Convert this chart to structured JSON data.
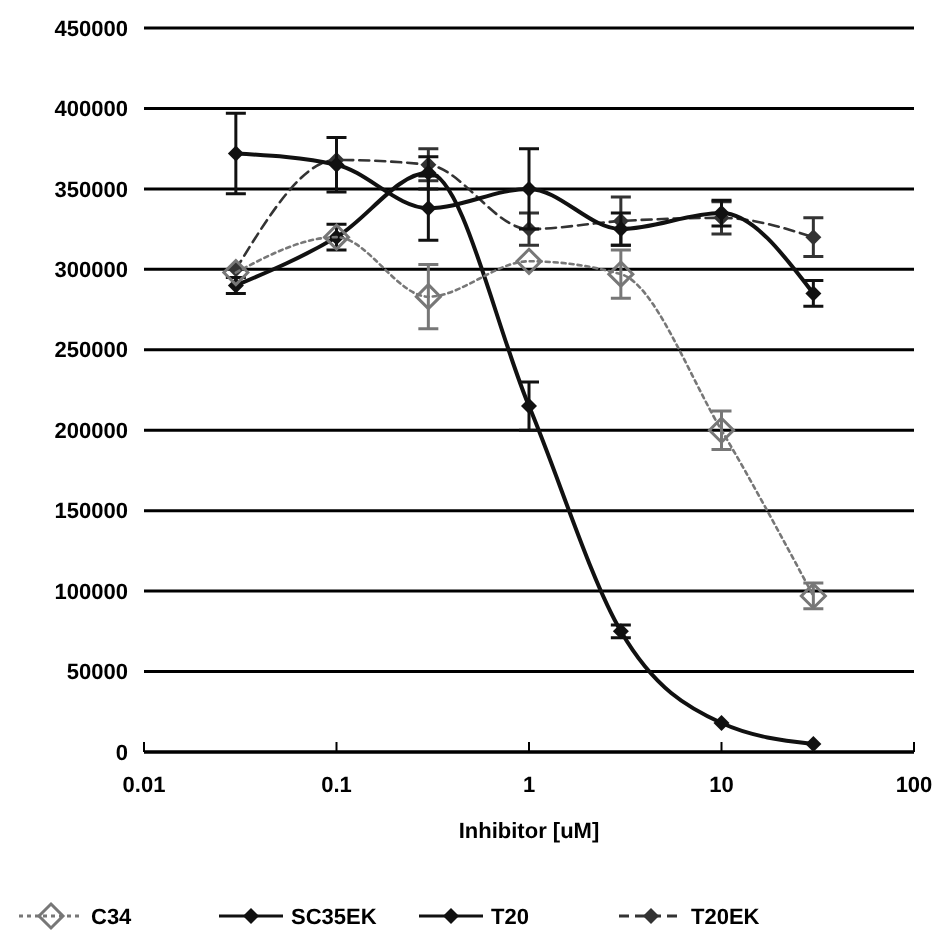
{
  "chart_data": {
    "type": "line",
    "xlabel": "Inhibitor [uM]",
    "log": "x",
    "grid": "y",
    "legend": "bottom",
    "marker": "diamond",
    "x": [
      0.03,
      0.1,
      0.3,
      1,
      3,
      10,
      30
    ],
    "xlim": [
      0.01,
      100
    ],
    "xticks": [
      0.01,
      0.1,
      1,
      10,
      100
    ],
    "ylim": [
      0,
      450000
    ],
    "yticks": [
      0,
      50000,
      100000,
      150000,
      200000,
      250000,
      300000,
      350000,
      400000,
      450000
    ],
    "series": [
      {
        "name": "C34",
        "color": "#777777",
        "line_style": "dotted",
        "values": [
          298000,
          320000,
          283000,
          305000,
          297000,
          200000,
          97000
        ],
        "errors": [
          null,
          null,
          20000,
          null,
          15000,
          12000,
          8000
        ]
      },
      {
        "name": "SC35EK",
        "color": "#111111",
        "line_style": "solid",
        "values": [
          372000,
          365000,
          338000,
          350000,
          325000,
          335000,
          285000
        ],
        "errors": [
          25000,
          17000,
          20000,
          25000,
          10000,
          8000,
          8000
        ]
      },
      {
        "name": "T20",
        "color": "#111111",
        "line_style": "solid",
        "values": [
          290000,
          320000,
          360000,
          215000,
          75000,
          18000,
          5000
        ],
        "errors": [
          5000,
          8000,
          10000,
          15000,
          4000,
          null,
          null
        ]
      },
      {
        "name": "T20EK",
        "color": "#333333",
        "line_style": "dashed",
        "values": [
          300000,
          368000,
          365000,
          325000,
          330000,
          332000,
          320000
        ],
        "errors": [
          null,
          null,
          10000,
          10000,
          15000,
          10000,
          12000
        ]
      }
    ]
  }
}
